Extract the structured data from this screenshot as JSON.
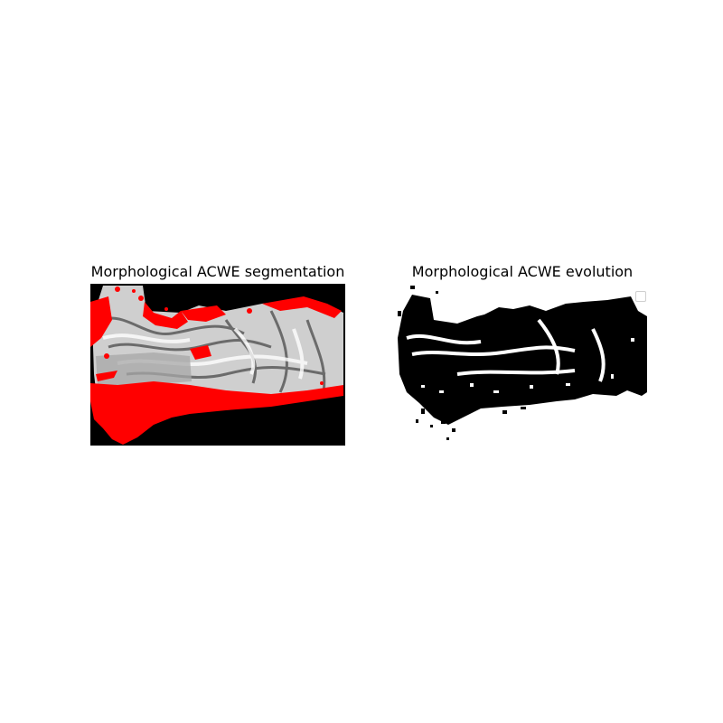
{
  "figure": {
    "left_panel": {
      "title": "Morphological ACWE segmentation"
    },
    "right_panel": {
      "title": "Morphological ACWE evolution"
    }
  },
  "colors": {
    "background": "#ffffff",
    "contour": "#ff0000",
    "image_dark": "#000000",
    "image_light": "#d8d8d8"
  }
}
